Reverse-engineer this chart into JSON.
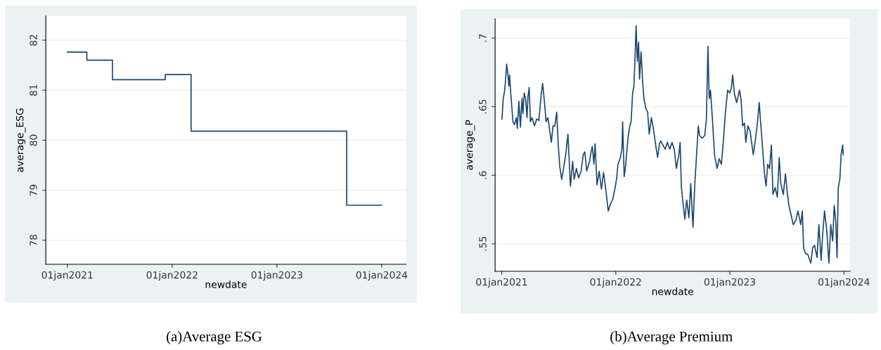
{
  "chart_data": [
    {
      "type": "step",
      "title": "(a)Average ESG",
      "xlabel": "newdate",
      "ylabel": "average_ESG",
      "x": [
        "2021-01-01",
        "2021-03-10",
        "2021-06-07",
        "2021-12-08",
        "2022-03-08",
        "2023-09-01",
        "2023-12-31"
      ],
      "series": [
        {
          "color": "#1a476f",
          "values": [
            81.76,
            81.6,
            81.21,
            81.31,
            80.18,
            78.7,
            78.7
          ]
        }
      ],
      "xlim": [
        "2020-10-18",
        "2024-03-26"
      ],
      "ylim": [
        77.52,
        82.48
      ],
      "xticks": [
        {
          "value": "2021-01-01",
          "label": "01jan2021"
        },
        {
          "value": "2022-01-01",
          "label": "01jan2022"
        },
        {
          "value": "2023-01-01",
          "label": "01jan2023"
        },
        {
          "value": "2024-01-01",
          "label": "01jan2024"
        }
      ],
      "yticks": [
        78,
        79,
        80,
        81,
        82
      ],
      "grid": "y"
    },
    {
      "type": "line",
      "title": "(b)Average Premium",
      "xlabel": "newdate",
      "ylabel": "average_P",
      "x": [
        "2021-01-02",
        "2021-01-06",
        "2021-01-10",
        "2021-01-13",
        "2021-01-17",
        "2021-01-20",
        "2021-01-24",
        "2021-01-26",
        "2021-01-30",
        "2021-02-06",
        "2021-02-11",
        "2021-02-17",
        "2021-02-20",
        "2021-02-25",
        "2021-03-02",
        "2021-03-07",
        "2021-03-10",
        "2021-03-14",
        "2021-03-19",
        "2021-03-23",
        "2021-03-26",
        "2021-03-30",
        "2021-04-03",
        "2021-04-08",
        "2021-04-16",
        "2021-04-23",
        "2021-04-30",
        "2021-05-07",
        "2021-05-12",
        "2021-05-18",
        "2021-05-23",
        "2021-05-29",
        "2021-06-04",
        "2021-06-09",
        "2021-06-14",
        "2021-06-20",
        "2021-06-26",
        "2021-07-01",
        "2021-07-06",
        "2021-07-12",
        "2021-07-18",
        "2021-07-26",
        "2021-08-01",
        "2021-08-09",
        "2021-08-16",
        "2021-08-21",
        "2021-08-28",
        "2021-09-04",
        "2021-09-12",
        "2021-09-19",
        "2021-09-24",
        "2021-09-30",
        "2021-10-09",
        "2021-10-14",
        "2021-10-18",
        "2021-10-23",
        "2021-10-27",
        "2021-11-02",
        "2021-11-09",
        "2021-11-16",
        "2021-11-23",
        "2021-12-01",
        "2021-12-08",
        "2021-12-15",
        "2021-12-23",
        "2021-12-30",
        "2022-01-04",
        "2022-01-08",
        "2022-01-16",
        "2022-01-21",
        "2022-01-23",
        "2022-01-28",
        "2022-02-02",
        "2022-02-09",
        "2022-02-15",
        "2022-02-19",
        "2022-02-24",
        "2022-02-28",
        "2022-03-04",
        "2022-03-07",
        "2022-03-11",
        "2022-03-15",
        "2022-03-18",
        "2022-03-23",
        "2022-03-28",
        "2022-04-01",
        "2022-04-07",
        "2022-04-13",
        "2022-04-18",
        "2022-04-25",
        "2022-05-02",
        "2022-05-10",
        "2022-05-15",
        "2022-05-21",
        "2022-05-25",
        "2022-06-01",
        "2022-06-08",
        "2022-06-15",
        "2022-06-23",
        "2022-06-30",
        "2022-07-07",
        "2022-07-14",
        "2022-07-22",
        "2022-07-26",
        "2022-07-30",
        "2022-08-05",
        "2022-08-10",
        "2022-08-16",
        "2022-08-23",
        "2022-08-29",
        "2022-09-05",
        "2022-09-11",
        "2022-09-18",
        "2022-09-22",
        "2022-09-26",
        "2022-10-04",
        "2022-10-13",
        "2022-10-18",
        "2022-10-23",
        "2022-10-27",
        "2022-10-31",
        "2022-11-06",
        "2022-11-13",
        "2022-11-21",
        "2022-11-28",
        "2022-12-05",
        "2022-12-12",
        "2022-12-18",
        "2022-12-25",
        "2023-01-01",
        "2023-01-06",
        "2023-01-10",
        "2023-01-16",
        "2023-01-23",
        "2023-02-01",
        "2023-02-06",
        "2023-02-11",
        "2023-02-17",
        "2023-02-21",
        "2023-02-28",
        "2023-03-07",
        "2023-03-17",
        "2023-03-24",
        "2023-03-31",
        "2023-04-05",
        "2023-04-09",
        "2023-04-16",
        "2023-04-22",
        "2023-04-27",
        "2023-05-02",
        "2023-05-08",
        "2023-05-14",
        "2023-05-19",
        "2023-05-26",
        "2023-06-02",
        "2023-06-08",
        "2023-06-13",
        "2023-06-21",
        "2023-06-28",
        "2023-07-04",
        "2023-07-09",
        "2023-07-16",
        "2023-07-23",
        "2023-07-31",
        "2023-08-07",
        "2023-08-16",
        "2023-08-21",
        "2023-08-25",
        "2023-08-31",
        "2023-09-08",
        "2023-09-17",
        "2023-09-23",
        "2023-09-29",
        "2023-10-07",
        "2023-10-13",
        "2023-10-20",
        "2023-10-25",
        "2023-10-31",
        "2023-11-07",
        "2023-11-14",
        "2023-11-20",
        "2023-11-26",
        "2023-12-01",
        "2023-12-06",
        "2023-12-10",
        "2023-12-14",
        "2023-12-19",
        "2023-12-23",
        "2023-12-28",
        "2023-12-30"
      ],
      "series": [
        {
          "color": "#1a476f",
          "values": [
            0.641,
            0.656,
            0.661,
            0.668,
            0.681,
            0.676,
            0.665,
            0.673,
            0.66,
            0.639,
            0.637,
            0.642,
            0.634,
            0.654,
            0.635,
            0.656,
            0.645,
            0.66,
            0.655,
            0.642,
            0.657,
            0.664,
            0.639,
            0.642,
            0.636,
            0.641,
            0.64,
            0.658,
            0.667,
            0.653,
            0.639,
            0.642,
            0.632,
            0.624,
            0.636,
            0.636,
            0.646,
            0.622,
            0.606,
            0.597,
            0.605,
            0.617,
            0.63,
            0.592,
            0.61,
            0.597,
            0.605,
            0.598,
            0.603,
            0.615,
            0.617,
            0.603,
            0.61,
            0.617,
            0.621,
            0.608,
            0.623,
            0.593,
            0.603,
            0.59,
            0.602,
            0.588,
            0.574,
            0.579,
            0.583,
            0.591,
            0.598,
            0.608,
            0.613,
            0.62,
            0.639,
            0.599,
            0.608,
            0.627,
            0.636,
            0.639,
            0.66,
            0.665,
            0.688,
            0.709,
            0.683,
            0.697,
            0.67,
            0.69,
            0.668,
            0.656,
            0.649,
            0.646,
            0.63,
            0.642,
            0.633,
            0.62,
            0.613,
            0.623,
            0.625,
            0.622,
            0.619,
            0.624,
            0.619,
            0.624,
            0.619,
            0.605,
            0.615,
            0.624,
            0.591,
            0.578,
            0.568,
            0.582,
            0.569,
            0.594,
            0.562,
            0.594,
            0.62,
            0.636,
            0.629,
            0.627,
            0.629,
            0.641,
            0.694,
            0.656,
            0.662,
            0.642,
            0.615,
            0.605,
            0.612,
            0.608,
            0.627,
            0.646,
            0.662,
            0.66,
            0.664,
            0.673,
            0.659,
            0.653,
            0.662,
            0.655,
            0.636,
            0.638,
            0.624,
            0.636,
            0.632,
            0.615,
            0.626,
            0.64,
            0.653,
            0.64,
            0.619,
            0.601,
            0.592,
            0.608,
            0.605,
            0.622,
            0.586,
            0.591,
            0.584,
            0.613,
            0.594,
            0.586,
            0.601,
            0.587,
            0.578,
            0.571,
            0.564,
            0.567,
            0.574,
            0.564,
            0.574,
            0.547,
            0.543,
            0.542,
            0.536,
            0.547,
            0.549,
            0.54,
            0.564,
            0.538,
            0.557,
            0.574,
            0.56,
            0.536,
            0.564,
            0.552,
            0.578,
            0.566,
            0.54,
            0.591,
            0.597,
            0.615,
            0.622,
            0.615
          ]
        }
      ],
      "xlim": [
        "2020-12-11",
        "2024-01-21"
      ],
      "ylim": [
        0.53,
        0.714
      ],
      "xticks": [
        {
          "value": "2021-01-01",
          "label": "01jan2021"
        },
        {
          "value": "2022-01-01",
          "label": "01jan2022"
        },
        {
          "value": "2023-01-01",
          "label": "01jan2023"
        },
        {
          "value": "2024-01-01",
          "label": "01jan2024"
        }
      ],
      "yticks": [
        {
          "value": 0.55,
          "label": ".55"
        },
        {
          "value": 0.6,
          "label": ".6"
        },
        {
          "value": 0.65,
          "label": ".65"
        },
        {
          "value": 0.7,
          "label": ".7"
        }
      ],
      "grid": "y"
    }
  ]
}
